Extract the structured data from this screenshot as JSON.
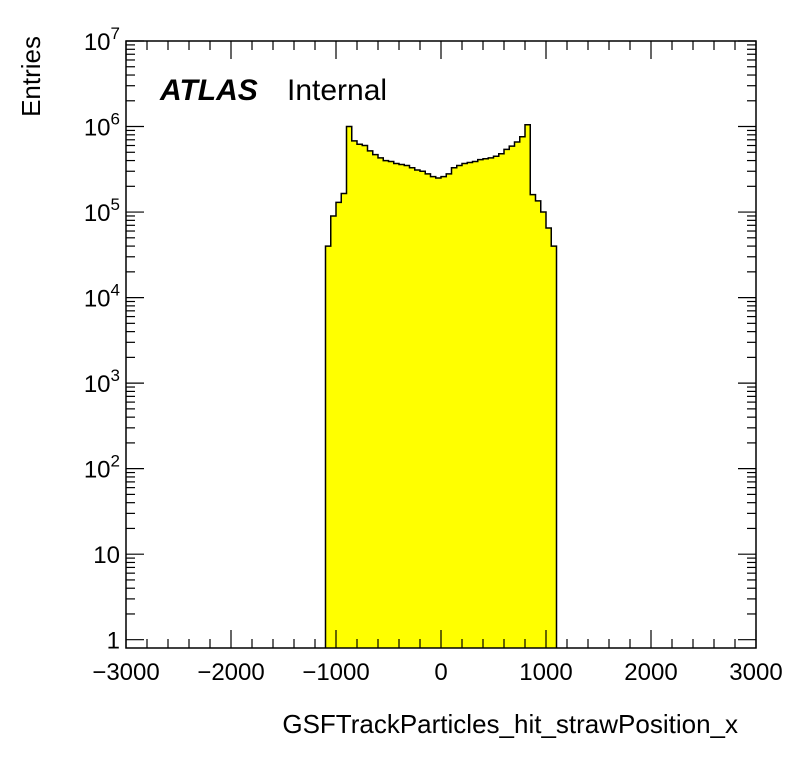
{
  "chart_data": {
    "type": "bar",
    "style": "histogram",
    "xlabel": "GSFTrackParticles_hit_strawPosition_x",
    "ylabel": "Entries",
    "label_bold": "ATLAS",
    "label_normal": "Internal",
    "xlim": [
      -3000,
      3000
    ],
    "ylim": [
      0.8,
      10000000
    ],
    "yscale": "log",
    "fill_color": "#ffff00",
    "line_color": "#000000",
    "bin_width": 50,
    "xticks": [
      {
        "value": -3000,
        "label": "−3000"
      },
      {
        "value": -2000,
        "label": "−2000"
      },
      {
        "value": -1000,
        "label": "−1000"
      },
      {
        "value": 0,
        "label": "0"
      },
      {
        "value": 1000,
        "label": "1000"
      },
      {
        "value": 2000,
        "label": "2000"
      },
      {
        "value": 3000,
        "label": "3000"
      }
    ],
    "yticks": [
      {
        "value": 1,
        "base": "1",
        "exp": ""
      },
      {
        "value": 10,
        "base": "10",
        "exp": ""
      },
      {
        "value": 100,
        "base": "10",
        "exp": "2"
      },
      {
        "value": 1000,
        "base": "10",
        "exp": "3"
      },
      {
        "value": 10000,
        "base": "10",
        "exp": "4"
      },
      {
        "value": 100000,
        "base": "10",
        "exp": "5"
      },
      {
        "value": 1000000,
        "base": "10",
        "exp": "6"
      },
      {
        "value": 10000000,
        "base": "10",
        "exp": "7"
      }
    ],
    "bins": [
      {
        "x": -1100,
        "y": 40000
      },
      {
        "x": -1050,
        "y": 90000
      },
      {
        "x": -1000,
        "y": 130000
      },
      {
        "x": -950,
        "y": 165000
      },
      {
        "x": -900,
        "y": 1000000
      },
      {
        "x": -850,
        "y": 680000
      },
      {
        "x": -800,
        "y": 620000
      },
      {
        "x": -750,
        "y": 600000
      },
      {
        "x": -700,
        "y": 520000
      },
      {
        "x": -650,
        "y": 470000
      },
      {
        "x": -600,
        "y": 430000
      },
      {
        "x": -550,
        "y": 400000
      },
      {
        "x": -500,
        "y": 390000
      },
      {
        "x": -450,
        "y": 370000
      },
      {
        "x": -400,
        "y": 360000
      },
      {
        "x": -350,
        "y": 350000
      },
      {
        "x": -300,
        "y": 330000
      },
      {
        "x": -250,
        "y": 310000
      },
      {
        "x": -200,
        "y": 300000
      },
      {
        "x": -150,
        "y": 280000
      },
      {
        "x": -100,
        "y": 260000
      },
      {
        "x": -50,
        "y": 250000
      },
      {
        "x": 0,
        "y": 260000
      },
      {
        "x": 50,
        "y": 280000
      },
      {
        "x": 100,
        "y": 330000
      },
      {
        "x": 150,
        "y": 350000
      },
      {
        "x": 200,
        "y": 370000
      },
      {
        "x": 250,
        "y": 380000
      },
      {
        "x": 300,
        "y": 390000
      },
      {
        "x": 350,
        "y": 410000
      },
      {
        "x": 400,
        "y": 420000
      },
      {
        "x": 450,
        "y": 430000
      },
      {
        "x": 500,
        "y": 450000
      },
      {
        "x": 550,
        "y": 480000
      },
      {
        "x": 600,
        "y": 540000
      },
      {
        "x": 650,
        "y": 590000
      },
      {
        "x": 700,
        "y": 660000
      },
      {
        "x": 750,
        "y": 760000
      },
      {
        "x": 800,
        "y": 1050000
      },
      {
        "x": 850,
        "y": 160000
      },
      {
        "x": 900,
        "y": 135000
      },
      {
        "x": 950,
        "y": 100000
      },
      {
        "x": 1000,
        "y": 65000
      },
      {
        "x": 1050,
        "y": 40000
      }
    ]
  }
}
